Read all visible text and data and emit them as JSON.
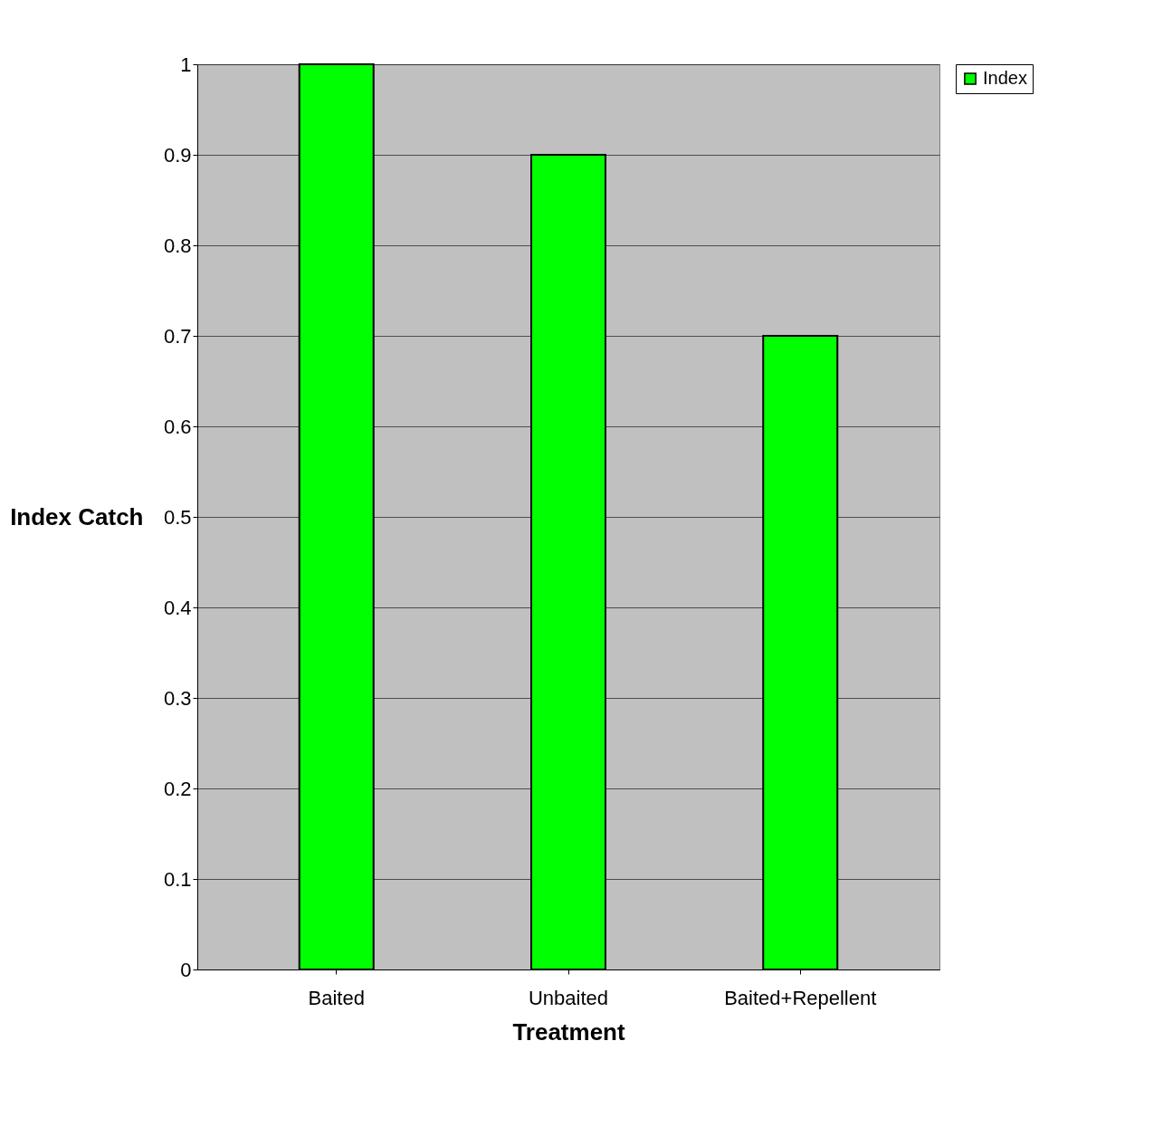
{
  "chart_data": {
    "type": "bar",
    "xlabel": "Treatment",
    "ylabel": "Index Catch",
    "categories": [
      "Baited",
      "Unbaited",
      "Baited+Repellent"
    ],
    "series": [
      {
        "name": "Index",
        "color": "#00ff00",
        "values": [
          1,
          0.9,
          0.7
        ]
      }
    ],
    "ylim": [
      0,
      1
    ],
    "yticks": [
      0,
      0.1,
      0.2,
      0.3,
      0.4,
      0.5,
      0.6,
      0.7,
      0.8,
      0.9,
      1
    ],
    "grid": "y",
    "legend": "right"
  }
}
